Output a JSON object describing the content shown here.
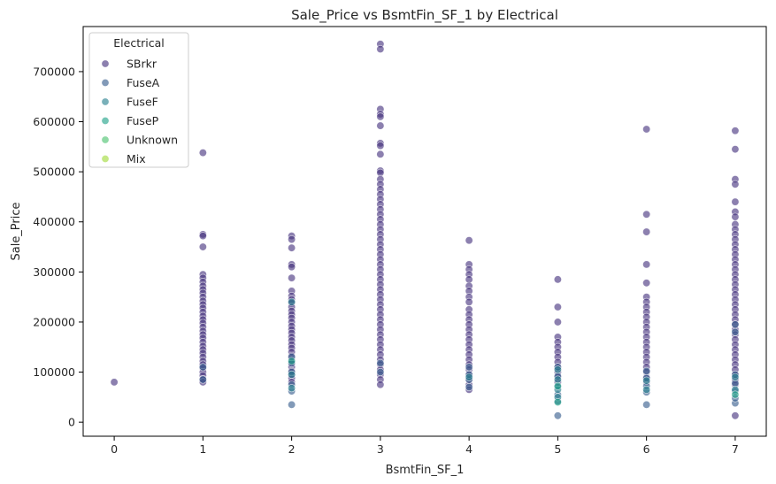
{
  "chart_data": {
    "type": "scatter",
    "title": "Sale_Price vs BsmtFin_SF_1 by Electrical",
    "xlabel": "BsmtFin_SF_1",
    "ylabel": "Sale_Price",
    "xlim": [
      -0.35,
      7.35
    ],
    "ylim": [
      -28000,
      790000
    ],
    "xticks": [
      0,
      1,
      2,
      3,
      4,
      5,
      6,
      7
    ],
    "yticks": [
      0,
      100000,
      200000,
      300000,
      400000,
      500000,
      600000,
      700000
    ],
    "grid": false,
    "legend": {
      "title": "Electrical",
      "placement": "top-left"
    },
    "series": [
      {
        "name": "SBrkr",
        "color": "#46327e",
        "points": [
          [
            0,
            80000
          ],
          [
            1,
            538000
          ],
          [
            1,
            375000
          ],
          [
            1,
            372000
          ],
          [
            1,
            350000
          ],
          [
            1,
            295000
          ],
          [
            1,
            288000
          ],
          [
            1,
            280000
          ],
          [
            1,
            272000
          ],
          [
            1,
            265000
          ],
          [
            1,
            258000
          ],
          [
            1,
            250000
          ],
          [
            1,
            242000
          ],
          [
            1,
            235000
          ],
          [
            1,
            228000
          ],
          [
            1,
            220000
          ],
          [
            1,
            212000
          ],
          [
            1,
            205000
          ],
          [
            1,
            198000
          ],
          [
            1,
            190000
          ],
          [
            1,
            182000
          ],
          [
            1,
            175000
          ],
          [
            1,
            168000
          ],
          [
            1,
            160000
          ],
          [
            1,
            152000
          ],
          [
            1,
            145000
          ],
          [
            1,
            138000
          ],
          [
            1,
            130000
          ],
          [
            1,
            122000
          ],
          [
            1,
            115000
          ],
          [
            1,
            108000
          ],
          [
            1,
            100000
          ],
          [
            1,
            93000
          ],
          [
            1,
            86000
          ],
          [
            1,
            80000
          ],
          [
            2,
            372000
          ],
          [
            2,
            365000
          ],
          [
            2,
            348000
          ],
          [
            2,
            315000
          ],
          [
            2,
            310000
          ],
          [
            2,
            288000
          ],
          [
            2,
            262000
          ],
          [
            2,
            252000
          ],
          [
            2,
            245000
          ],
          [
            2,
            238000
          ],
          [
            2,
            230000
          ],
          [
            2,
            222000
          ],
          [
            2,
            215000
          ],
          [
            2,
            208000
          ],
          [
            2,
            200000
          ],
          [
            2,
            192000
          ],
          [
            2,
            185000
          ],
          [
            2,
            178000
          ],
          [
            2,
            170000
          ],
          [
            2,
            163000
          ],
          [
            2,
            155000
          ],
          [
            2,
            148000
          ],
          [
            2,
            140000
          ],
          [
            2,
            132000
          ],
          [
            2,
            125000
          ],
          [
            2,
            118000
          ],
          [
            2,
            110000
          ],
          [
            2,
            102000
          ],
          [
            2,
            95000
          ],
          [
            2,
            88000
          ],
          [
            2,
            80000
          ],
          [
            3,
            755000
          ],
          [
            3,
            745000
          ],
          [
            3,
            625000
          ],
          [
            3,
            615000
          ],
          [
            3,
            610000
          ],
          [
            3,
            592000
          ],
          [
            3,
            557000
          ],
          [
            3,
            552000
          ],
          [
            3,
            535000
          ],
          [
            3,
            502000
          ],
          [
            3,
            498000
          ],
          [
            3,
            485000
          ],
          [
            3,
            475000
          ],
          [
            3,
            465000
          ],
          [
            3,
            455000
          ],
          [
            3,
            445000
          ],
          [
            3,
            435000
          ],
          [
            3,
            425000
          ],
          [
            3,
            415000
          ],
          [
            3,
            405000
          ],
          [
            3,
            395000
          ],
          [
            3,
            385000
          ],
          [
            3,
            375000
          ],
          [
            3,
            365000
          ],
          [
            3,
            355000
          ],
          [
            3,
            345000
          ],
          [
            3,
            335000
          ],
          [
            3,
            325000
          ],
          [
            3,
            315000
          ],
          [
            3,
            305000
          ],
          [
            3,
            295000
          ],
          [
            3,
            285000
          ],
          [
            3,
            275000
          ],
          [
            3,
            265000
          ],
          [
            3,
            255000
          ],
          [
            3,
            245000
          ],
          [
            3,
            235000
          ],
          [
            3,
            225000
          ],
          [
            3,
            215000
          ],
          [
            3,
            205000
          ],
          [
            3,
            195000
          ],
          [
            3,
            185000
          ],
          [
            3,
            175000
          ],
          [
            3,
            165000
          ],
          [
            3,
            155000
          ],
          [
            3,
            145000
          ],
          [
            3,
            135000
          ],
          [
            3,
            125000
          ],
          [
            3,
            115000
          ],
          [
            3,
            105000
          ],
          [
            3,
            95000
          ],
          [
            3,
            85000
          ],
          [
            3,
            75000
          ],
          [
            4,
            363000
          ],
          [
            4,
            315000
          ],
          [
            4,
            305000
          ],
          [
            4,
            295000
          ],
          [
            4,
            285000
          ],
          [
            4,
            272000
          ],
          [
            4,
            262000
          ],
          [
            4,
            250000
          ],
          [
            4,
            240000
          ],
          [
            4,
            225000
          ],
          [
            4,
            215000
          ],
          [
            4,
            205000
          ],
          [
            4,
            195000
          ],
          [
            4,
            185000
          ],
          [
            4,
            175000
          ],
          [
            4,
            165000
          ],
          [
            4,
            155000
          ],
          [
            4,
            145000
          ],
          [
            4,
            135000
          ],
          [
            4,
            125000
          ],
          [
            4,
            115000
          ],
          [
            4,
            105000
          ],
          [
            4,
            95000
          ],
          [
            4,
            85000
          ],
          [
            4,
            75000
          ],
          [
            4,
            65000
          ],
          [
            5,
            285000
          ],
          [
            5,
            230000
          ],
          [
            5,
            200000
          ],
          [
            5,
            170000
          ],
          [
            5,
            160000
          ],
          [
            5,
            150000
          ],
          [
            5,
            140000
          ],
          [
            5,
            130000
          ],
          [
            5,
            120000
          ],
          [
            5,
            110000
          ],
          [
            5,
            100000
          ],
          [
            5,
            90000
          ],
          [
            5,
            80000
          ],
          [
            6,
            585000
          ],
          [
            6,
            415000
          ],
          [
            6,
            380000
          ],
          [
            6,
            315000
          ],
          [
            6,
            278000
          ],
          [
            6,
            250000
          ],
          [
            6,
            240000
          ],
          [
            6,
            230000
          ],
          [
            6,
            220000
          ],
          [
            6,
            210000
          ],
          [
            6,
            200000
          ],
          [
            6,
            190000
          ],
          [
            6,
            180000
          ],
          [
            6,
            170000
          ],
          [
            6,
            160000
          ],
          [
            6,
            150000
          ],
          [
            6,
            140000
          ],
          [
            6,
            130000
          ],
          [
            6,
            120000
          ],
          [
            6,
            110000
          ],
          [
            6,
            100000
          ],
          [
            6,
            90000
          ],
          [
            6,
            80000
          ],
          [
            7,
            582000
          ],
          [
            7,
            545000
          ],
          [
            7,
            485000
          ],
          [
            7,
            475000
          ],
          [
            7,
            440000
          ],
          [
            7,
            420000
          ],
          [
            7,
            410000
          ],
          [
            7,
            395000
          ],
          [
            7,
            385000
          ],
          [
            7,
            375000
          ],
          [
            7,
            365000
          ],
          [
            7,
            355000
          ],
          [
            7,
            345000
          ],
          [
            7,
            335000
          ],
          [
            7,
            325000
          ],
          [
            7,
            315000
          ],
          [
            7,
            305000
          ],
          [
            7,
            295000
          ],
          [
            7,
            285000
          ],
          [
            7,
            275000
          ],
          [
            7,
            265000
          ],
          [
            7,
            255000
          ],
          [
            7,
            245000
          ],
          [
            7,
            235000
          ],
          [
            7,
            225000
          ],
          [
            7,
            215000
          ],
          [
            7,
            205000
          ],
          [
            7,
            195000
          ],
          [
            7,
            185000
          ],
          [
            7,
            175000
          ],
          [
            7,
            165000
          ],
          [
            7,
            155000
          ],
          [
            7,
            145000
          ],
          [
            7,
            135000
          ],
          [
            7,
            125000
          ],
          [
            7,
            115000
          ],
          [
            7,
            105000
          ],
          [
            7,
            95000
          ],
          [
            7,
            85000
          ],
          [
            7,
            75000
          ],
          [
            7,
            13000
          ]
        ]
      },
      {
        "name": "FuseA",
        "color": "#365c8d",
        "points": [
          [
            1,
            85000
          ],
          [
            1,
            110000
          ],
          [
            2,
            35000
          ],
          [
            2,
            62000
          ],
          [
            2,
            75000
          ],
          [
            2,
            100000
          ],
          [
            2,
            118000
          ],
          [
            2,
            130000
          ],
          [
            3,
            100000
          ],
          [
            3,
            118000
          ],
          [
            4,
            70000
          ],
          [
            4,
            85000
          ],
          [
            4,
            95000
          ],
          [
            4,
            110000
          ],
          [
            5,
            13000
          ],
          [
            5,
            42000
          ],
          [
            5,
            55000
          ],
          [
            5,
            70000
          ],
          [
            5,
            92000
          ],
          [
            5,
            110000
          ],
          [
            6,
            35000
          ],
          [
            6,
            60000
          ],
          [
            6,
            72000
          ],
          [
            6,
            88000
          ],
          [
            6,
            102000
          ],
          [
            7,
            38000
          ],
          [
            7,
            48000
          ],
          [
            7,
            62000
          ],
          [
            7,
            78000
          ],
          [
            7,
            95000
          ],
          [
            7,
            180000
          ],
          [
            7,
            195000
          ]
        ]
      },
      {
        "name": "FuseF",
        "color": "#277f8e",
        "points": [
          [
            2,
            68000
          ],
          [
            2,
            95000
          ],
          [
            2,
            240000
          ],
          [
            4,
            90000
          ],
          [
            5,
            50000
          ],
          [
            5,
            65000
          ],
          [
            5,
            85000
          ],
          [
            5,
            105000
          ],
          [
            6,
            65000
          ],
          [
            6,
            83000
          ],
          [
            7,
            65000
          ],
          [
            7,
            90000
          ]
        ]
      },
      {
        "name": "FuseP",
        "color": "#1fa187",
        "points": [
          [
            2,
            122000
          ],
          [
            5,
            40000
          ],
          [
            5,
            72000
          ],
          [
            7,
            55000
          ]
        ]
      },
      {
        "name": "Unknown",
        "color": "#4ac16d",
        "points": []
      },
      {
        "name": "Mix",
        "color": "#a0da39",
        "points": []
      }
    ]
  }
}
